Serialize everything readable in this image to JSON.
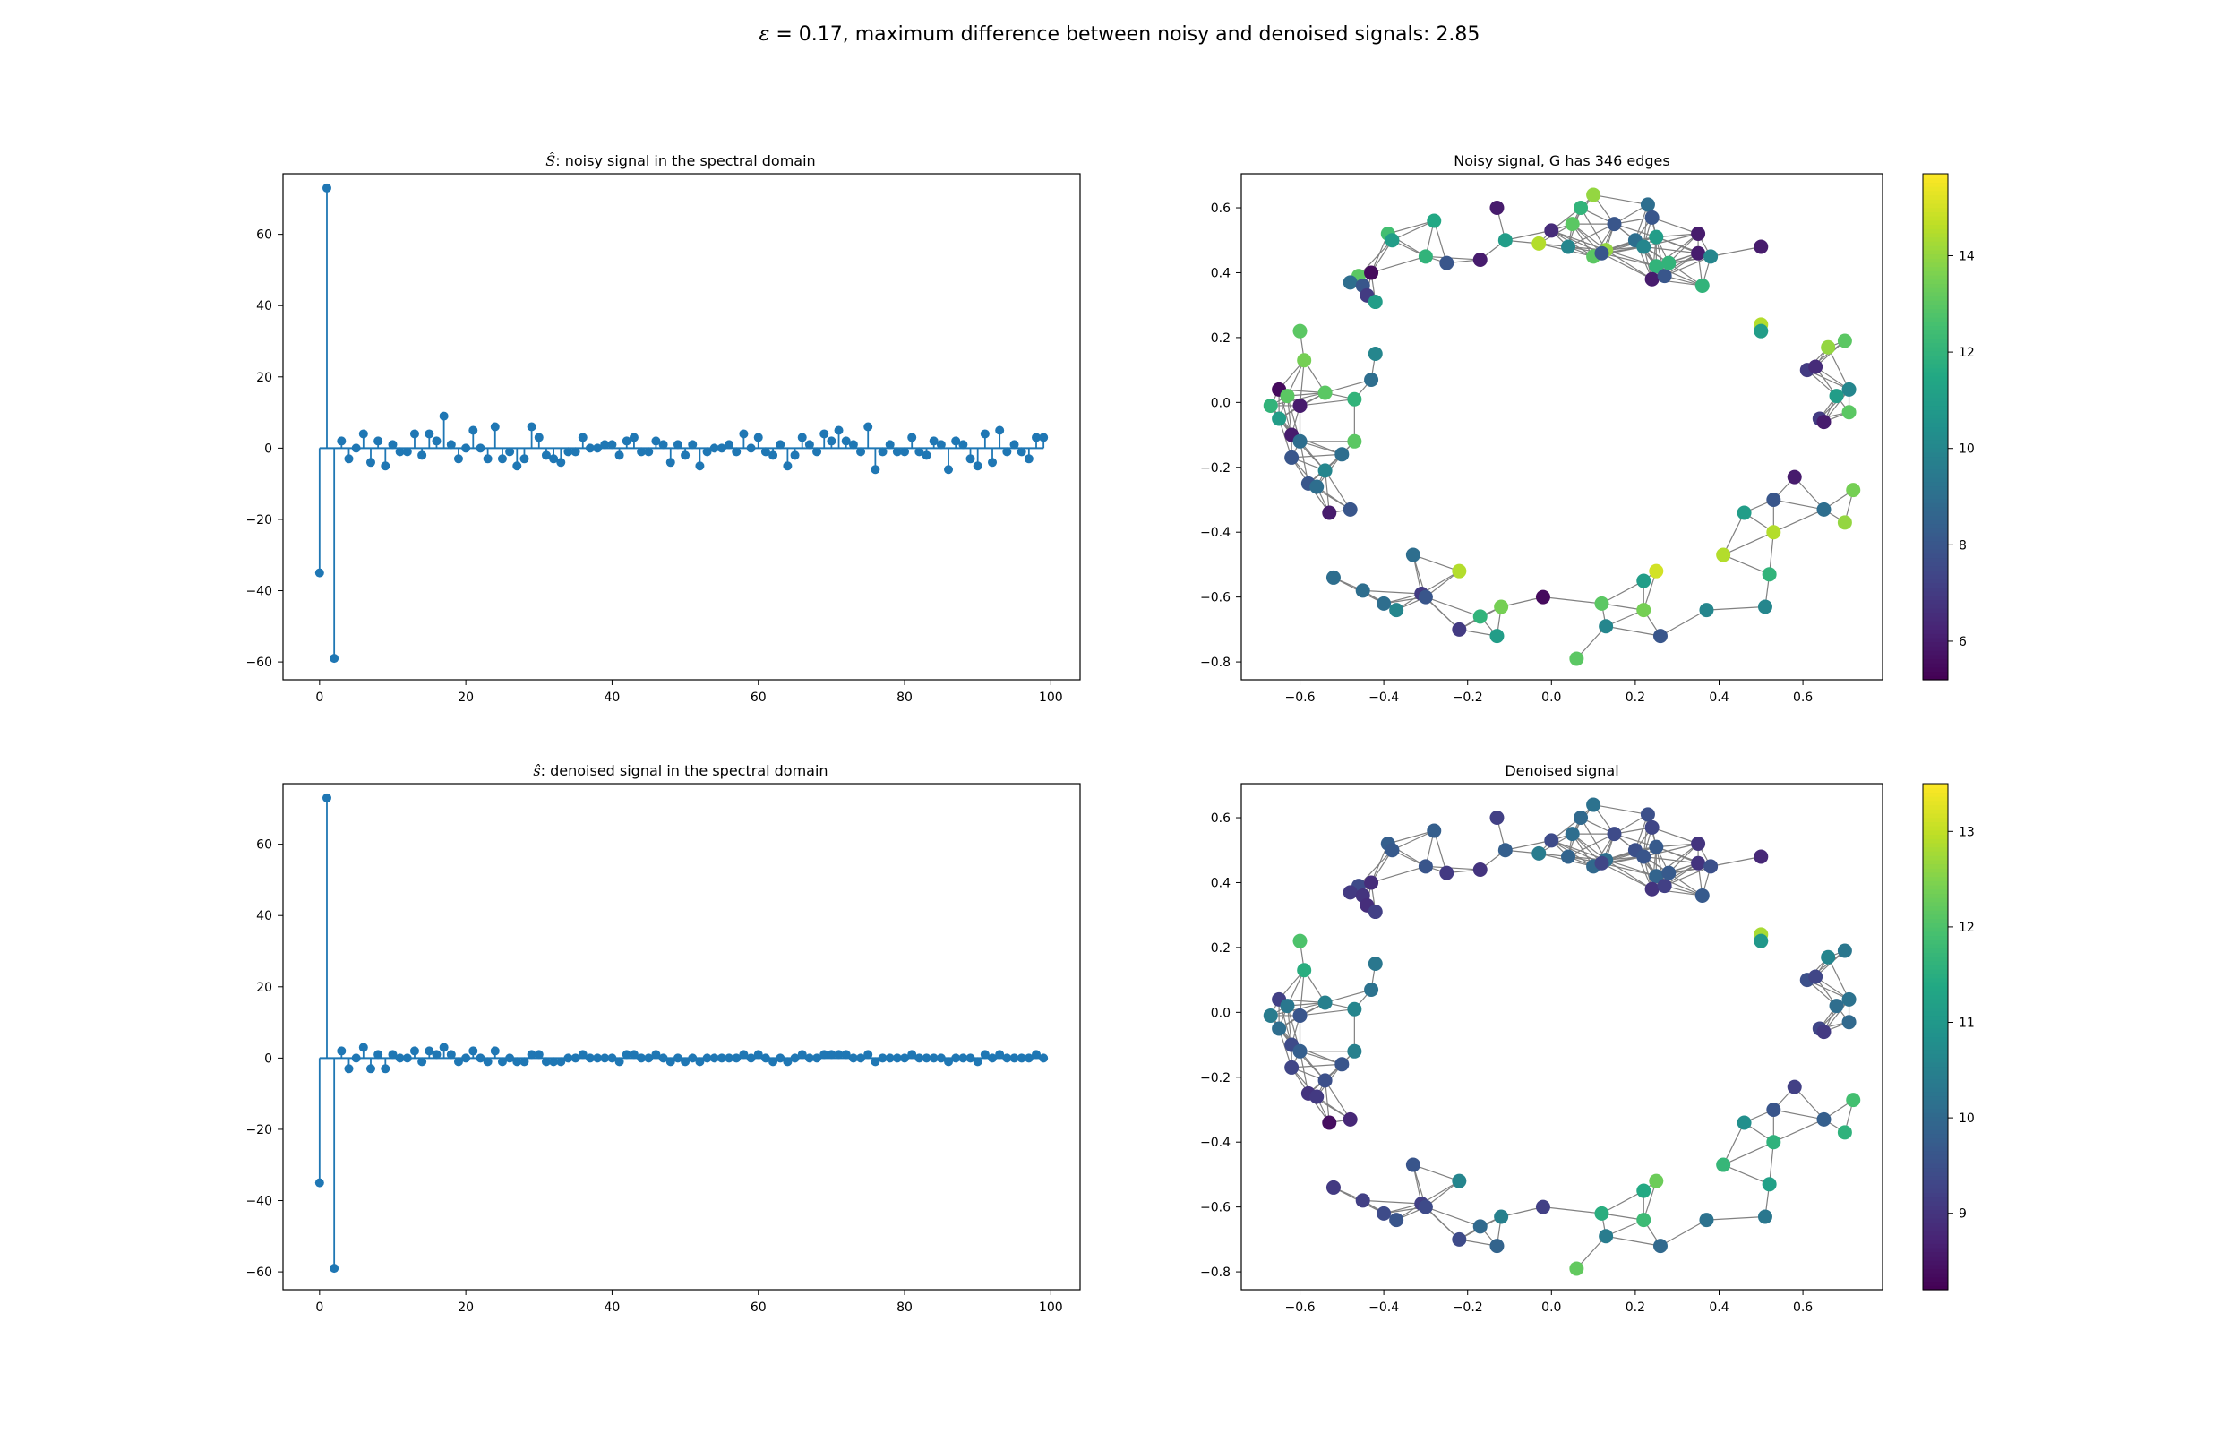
{
  "figure": {
    "title_symbol": "ε",
    "title_rest": " = 0.17, maximum difference between noisy and denoised signals: 2.85"
  },
  "chart_data": [
    {
      "type": "stem",
      "title_symbol": "Ŝ",
      "title_rest": ": noisy signal in the spectral domain",
      "xlim": [
        -5,
        104
      ],
      "ylim": [
        -65,
        77
      ],
      "xticks": [
        0,
        20,
        40,
        60,
        80,
        100
      ],
      "yticks": [
        -60,
        -40,
        -20,
        0,
        20,
        40,
        60
      ],
      "color": "#1f77b4",
      "values": [
        -35,
        73,
        -59,
        2,
        -3,
        0,
        4,
        -4,
        2,
        -5,
        1,
        -1,
        -1,
        4,
        -2,
        4,
        2,
        9,
        1,
        -3,
        0,
        5,
        0,
        -3,
        6,
        -3,
        -1,
        -5,
        -3,
        6,
        3,
        -2,
        -3,
        -4,
        -1,
        -1,
        3,
        0,
        0,
        1,
        1,
        -2,
        2,
        3,
        -1,
        -1,
        2,
        1,
        -4,
        1,
        -2,
        1,
        -5,
        -1,
        0,
        0,
        1,
        -1,
        4,
        0,
        3,
        -1,
        -2,
        1,
        -5,
        -2,
        3,
        1,
        -1,
        4,
        2,
        5,
        2,
        1,
        -1,
        6,
        -6,
        -1,
        1,
        -1,
        -1,
        3,
        -1,
        -2,
        2,
        1,
        -6,
        2,
        1,
        -3,
        -5,
        4,
        -4,
        5,
        -1,
        1,
        -1,
        -3,
        3,
        3
      ]
    },
    {
      "type": "graph-scatter",
      "title": "Noisy signal, G has 346 edges",
      "xlim": [
        -0.74,
        0.79
      ],
      "ylim": [
        -0.855,
        0.705
      ],
      "xticks": [
        -0.6,
        -0.4,
        -0.2,
        0.0,
        0.2,
        0.4,
        0.6
      ],
      "yticks": [
        -0.8,
        -0.6,
        -0.4,
        -0.2,
        0.0,
        0.2,
        0.4,
        0.6
      ],
      "tick_labels_x": [
        "−0.6",
        "−0.4",
        "−0.2",
        "0.0",
        "0.2",
        "0.4",
        "0.6"
      ],
      "tick_labels_y": [
        "−0.8",
        "−0.6",
        "−0.4",
        "−0.2",
        "0.0",
        "0.2",
        "0.4",
        "0.6"
      ],
      "colormap": "viridis",
      "colorbar": {
        "min": 5.2,
        "max": 15.7,
        "ticks": [
          6,
          8,
          10,
          12,
          14
        ]
      },
      "edge_color": "#808080",
      "nodes": [
        {
          "x": -0.13,
          "y": 0.6,
          "v": 6
        },
        {
          "x": 0.0,
          "y": 0.53,
          "v": 6.5
        },
        {
          "x": 0.1,
          "y": 0.64,
          "v": 14
        },
        {
          "x": 0.07,
          "y": 0.6,
          "v": 12
        },
        {
          "x": 0.05,
          "y": 0.55,
          "v": 13
        },
        {
          "x": -0.03,
          "y": 0.49,
          "v": 14.5
        },
        {
          "x": -0.11,
          "y": 0.5,
          "v": 11
        },
        {
          "x": 0.04,
          "y": 0.48,
          "v": 10
        },
        {
          "x": 0.1,
          "y": 0.45,
          "v": 13
        },
        {
          "x": 0.13,
          "y": 0.47,
          "v": 14
        },
        {
          "x": 0.15,
          "y": 0.55,
          "v": 8
        },
        {
          "x": 0.2,
          "y": 0.5,
          "v": 9
        },
        {
          "x": 0.23,
          "y": 0.61,
          "v": 9
        },
        {
          "x": 0.24,
          "y": 0.57,
          "v": 8
        },
        {
          "x": 0.25,
          "y": 0.51,
          "v": 11
        },
        {
          "x": 0.22,
          "y": 0.48,
          "v": 10
        },
        {
          "x": 0.25,
          "y": 0.42,
          "v": 12
        },
        {
          "x": 0.24,
          "y": 0.38,
          "v": 6
        },
        {
          "x": 0.27,
          "y": 0.39,
          "v": 8
        },
        {
          "x": 0.35,
          "y": 0.52,
          "v": 6
        },
        {
          "x": 0.35,
          "y": 0.46,
          "v": 6
        },
        {
          "x": 0.38,
          "y": 0.45,
          "v": 10
        },
        {
          "x": 0.36,
          "y": 0.36,
          "v": 12
        },
        {
          "x": 0.5,
          "y": 0.48,
          "v": 6
        },
        {
          "x": 0.12,
          "y": 0.46,
          "v": 8
        },
        {
          "x": 0.28,
          "y": 0.43,
          "v": 12
        },
        {
          "x": -0.28,
          "y": 0.56,
          "v": 11.5
        },
        {
          "x": -0.3,
          "y": 0.45,
          "v": 12
        },
        {
          "x": -0.39,
          "y": 0.52,
          "v": 12.5
        },
        {
          "x": -0.38,
          "y": 0.5,
          "v": 11
        },
        {
          "x": -0.25,
          "y": 0.43,
          "v": 8
        },
        {
          "x": -0.17,
          "y": 0.44,
          "v": 6
        },
        {
          "x": -0.46,
          "y": 0.39,
          "v": 13
        },
        {
          "x": -0.43,
          "y": 0.4,
          "v": 5.5
        },
        {
          "x": -0.48,
          "y": 0.37,
          "v": 9
        },
        {
          "x": -0.45,
          "y": 0.36,
          "v": 8
        },
        {
          "x": -0.44,
          "y": 0.33,
          "v": 7
        },
        {
          "x": -0.42,
          "y": 0.31,
          "v": 11
        },
        {
          "x": -0.42,
          "y": 0.15,
          "v": 10
        },
        {
          "x": -0.6,
          "y": 0.22,
          "v": 13
        },
        {
          "x": -0.59,
          "y": 0.13,
          "v": 13.5
        },
        {
          "x": -0.43,
          "y": 0.07,
          "v": 9
        },
        {
          "x": -0.65,
          "y": 0.04,
          "v": 5.5
        },
        {
          "x": -0.63,
          "y": 0.02,
          "v": 13
        },
        {
          "x": -0.6,
          "y": -0.01,
          "v": 6
        },
        {
          "x": -0.54,
          "y": 0.03,
          "v": 13
        },
        {
          "x": -0.47,
          "y": 0.01,
          "v": 12
        },
        {
          "x": -0.67,
          "y": -0.01,
          "v": 12
        },
        {
          "x": -0.65,
          "y": -0.05,
          "v": 11
        },
        {
          "x": -0.62,
          "y": -0.1,
          "v": 6
        },
        {
          "x": -0.6,
          "y": -0.12,
          "v": 9
        },
        {
          "x": -0.62,
          "y": -0.17,
          "v": 8
        },
        {
          "x": -0.5,
          "y": -0.16,
          "v": 9
        },
        {
          "x": -0.47,
          "y": -0.12,
          "v": 13
        },
        {
          "x": -0.54,
          "y": -0.21,
          "v": 10
        },
        {
          "x": -0.58,
          "y": -0.25,
          "v": 8
        },
        {
          "x": -0.56,
          "y": -0.26,
          "v": 9
        },
        {
          "x": -0.53,
          "y": -0.34,
          "v": 6
        },
        {
          "x": -0.48,
          "y": -0.33,
          "v": 8
        },
        {
          "x": -0.52,
          "y": -0.54,
          "v": 9
        },
        {
          "x": -0.45,
          "y": -0.58,
          "v": 9
        },
        {
          "x": -0.4,
          "y": -0.62,
          "v": 9
        },
        {
          "x": -0.37,
          "y": -0.64,
          "v": 10
        },
        {
          "x": -0.33,
          "y": -0.47,
          "v": 9
        },
        {
          "x": -0.31,
          "y": -0.59,
          "v": 7
        },
        {
          "x": -0.3,
          "y": -0.6,
          "v": 8
        },
        {
          "x": -0.22,
          "y": -0.52,
          "v": 14.5
        },
        {
          "x": -0.22,
          "y": -0.7,
          "v": 7
        },
        {
          "x": -0.17,
          "y": -0.66,
          "v": 12
        },
        {
          "x": -0.12,
          "y": -0.63,
          "v": 13.5
        },
        {
          "x": -0.13,
          "y": -0.72,
          "v": 11
        },
        {
          "x": -0.02,
          "y": -0.6,
          "v": 5.5
        },
        {
          "x": 0.06,
          "y": -0.79,
          "v": 13
        },
        {
          "x": 0.12,
          "y": -0.62,
          "v": 13
        },
        {
          "x": 0.13,
          "y": -0.69,
          "v": 10
        },
        {
          "x": 0.22,
          "y": -0.55,
          "v": 11
        },
        {
          "x": 0.25,
          "y": -0.52,
          "v": 15
        },
        {
          "x": 0.22,
          "y": -0.64,
          "v": 13.5
        },
        {
          "x": 0.26,
          "y": -0.72,
          "v": 8
        },
        {
          "x": 0.37,
          "y": -0.64,
          "v": 10
        },
        {
          "x": 0.41,
          "y": -0.47,
          "v": 14.5
        },
        {
          "x": 0.46,
          "y": -0.34,
          "v": 11
        },
        {
          "x": 0.53,
          "y": -0.4,
          "v": 14.5
        },
        {
          "x": 0.53,
          "y": -0.3,
          "v": 8
        },
        {
          "x": 0.58,
          "y": -0.23,
          "v": 6
        },
        {
          "x": 0.52,
          "y": -0.53,
          "v": 12
        },
        {
          "x": 0.51,
          "y": -0.63,
          "v": 10
        },
        {
          "x": 0.65,
          "y": -0.33,
          "v": 9
        },
        {
          "x": 0.7,
          "y": -0.37,
          "v": 14
        },
        {
          "x": 0.72,
          "y": -0.27,
          "v": 13.5
        },
        {
          "x": 0.5,
          "y": 0.24,
          "v": 14.5
        },
        {
          "x": 0.5,
          "y": 0.22,
          "v": 11
        },
        {
          "x": 0.61,
          "y": 0.1,
          "v": 7
        },
        {
          "x": 0.63,
          "y": 0.11,
          "v": 6.5
        },
        {
          "x": 0.66,
          "y": 0.17,
          "v": 14
        },
        {
          "x": 0.7,
          "y": 0.19,
          "v": 13
        },
        {
          "x": 0.68,
          "y": 0.02,
          "v": 11
        },
        {
          "x": 0.71,
          "y": 0.04,
          "v": 10
        },
        {
          "x": 0.71,
          "y": -0.03,
          "v": 13
        },
        {
          "x": 0.64,
          "y": -0.05,
          "v": 7
        },
        {
          "x": 0.65,
          "y": -0.06,
          "v": 6
        }
      ]
    },
    {
      "type": "stem",
      "title_symbol": "ŝ",
      "title_rest": ": denoised signal in the spectral domain",
      "xlim": [
        -5,
        104
      ],
      "ylim": [
        -65,
        77
      ],
      "xticks": [
        0,
        20,
        40,
        60,
        80,
        100
      ],
      "yticks": [
        -60,
        -40,
        -20,
        0,
        20,
        40,
        60
      ],
      "color": "#1f77b4",
      "values": [
        -35,
        73,
        -59,
        2,
        -3,
        0,
        3,
        -3,
        1,
        -3,
        1,
        0,
        0,
        2,
        -1,
        2,
        1,
        3,
        1,
        -1,
        0,
        2,
        0,
        -1,
        2,
        -1,
        0,
        -1,
        -1,
        1,
        1,
        -1,
        -1,
        -1,
        0,
        0,
        1,
        0,
        0,
        0,
        0,
        -1,
        1,
        1,
        0,
        0,
        1,
        0,
        -1,
        0,
        -1,
        0,
        -1,
        0,
        0,
        0,
        0,
        0,
        1,
        0,
        1,
        0,
        -1,
        0,
        -1,
        0,
        1,
        0,
        0,
        1,
        1,
        1,
        1,
        0,
        0,
        1,
        -1,
        0,
        0,
        0,
        0,
        1,
        0,
        0,
        0,
        0,
        -1,
        0,
        0,
        0,
        -1,
        1,
        0,
        1,
        0,
        0,
        0,
        0,
        1,
        0
      ]
    },
    {
      "type": "graph-scatter",
      "title": "Denoised signal",
      "xlim": [
        -0.74,
        0.79
      ],
      "ylim": [
        -0.855,
        0.705
      ],
      "xticks": [
        -0.6,
        -0.4,
        -0.2,
        0.0,
        0.2,
        0.4,
        0.6
      ],
      "yticks": [
        -0.8,
        -0.6,
        -0.4,
        -0.2,
        0.0,
        0.2,
        0.4,
        0.6
      ],
      "tick_labels_x": [
        "−0.6",
        "−0.4",
        "−0.2",
        "0.0",
        "0.2",
        "0.4",
        "0.6"
      ],
      "tick_labels_y": [
        "−0.8",
        "−0.6",
        "−0.4",
        "−0.2",
        "0.0",
        "0.2",
        "0.4",
        "0.6"
      ],
      "colormap": "viridis",
      "colorbar": {
        "min": 8.2,
        "max": 13.5,
        "ticks": [
          9,
          10,
          11,
          12,
          13
        ]
      },
      "edge_color": "#808080",
      "node_values": [
        9.2,
        9.4,
        10.2,
        10,
        10.1,
        10.4,
        9.8,
        9.9,
        10,
        10.1,
        9.4,
        9.5,
        9.5,
        9.3,
        9.7,
        9.6,
        9.9,
        9.0,
        9.2,
        9.0,
        9.0,
        9.5,
        9.7,
        8.8,
        9.3,
        9.7,
        9.8,
        9.6,
        9.8,
        9.7,
        9.1,
        9.0,
        9.4,
        8.9,
        9.1,
        9.0,
        8.9,
        9.2,
        10.3,
        12.0,
        11.5,
        10.2,
        9.2,
        10.3,
        9.6,
        10.5,
        10.6,
        10.4,
        10.1,
        9.4,
        9.8,
        9.3,
        9.6,
        10.5,
        9.5,
        9.0,
        9.1,
        8.4,
        8.8,
        9.1,
        9.2,
        9.4,
        9.6,
        9.6,
        9.2,
        9.4,
        10.6,
        9.4,
        10.0,
        10.5,
        9.9,
        9.2,
        12.2,
        11.5,
        10.4,
        11.4,
        12.3,
        11.8,
        10.0,
        10.2,
        11.7,
        10.8,
        11.6,
        9.6,
        9.2,
        11.2,
        10.3,
        9.8,
        11.6,
        11.9,
        12.8,
        11.0,
        9.5,
        9.3,
        10.6,
        10.3,
        10.1,
        10.2,
        10.0,
        9.3,
        9.1
      ]
    }
  ]
}
